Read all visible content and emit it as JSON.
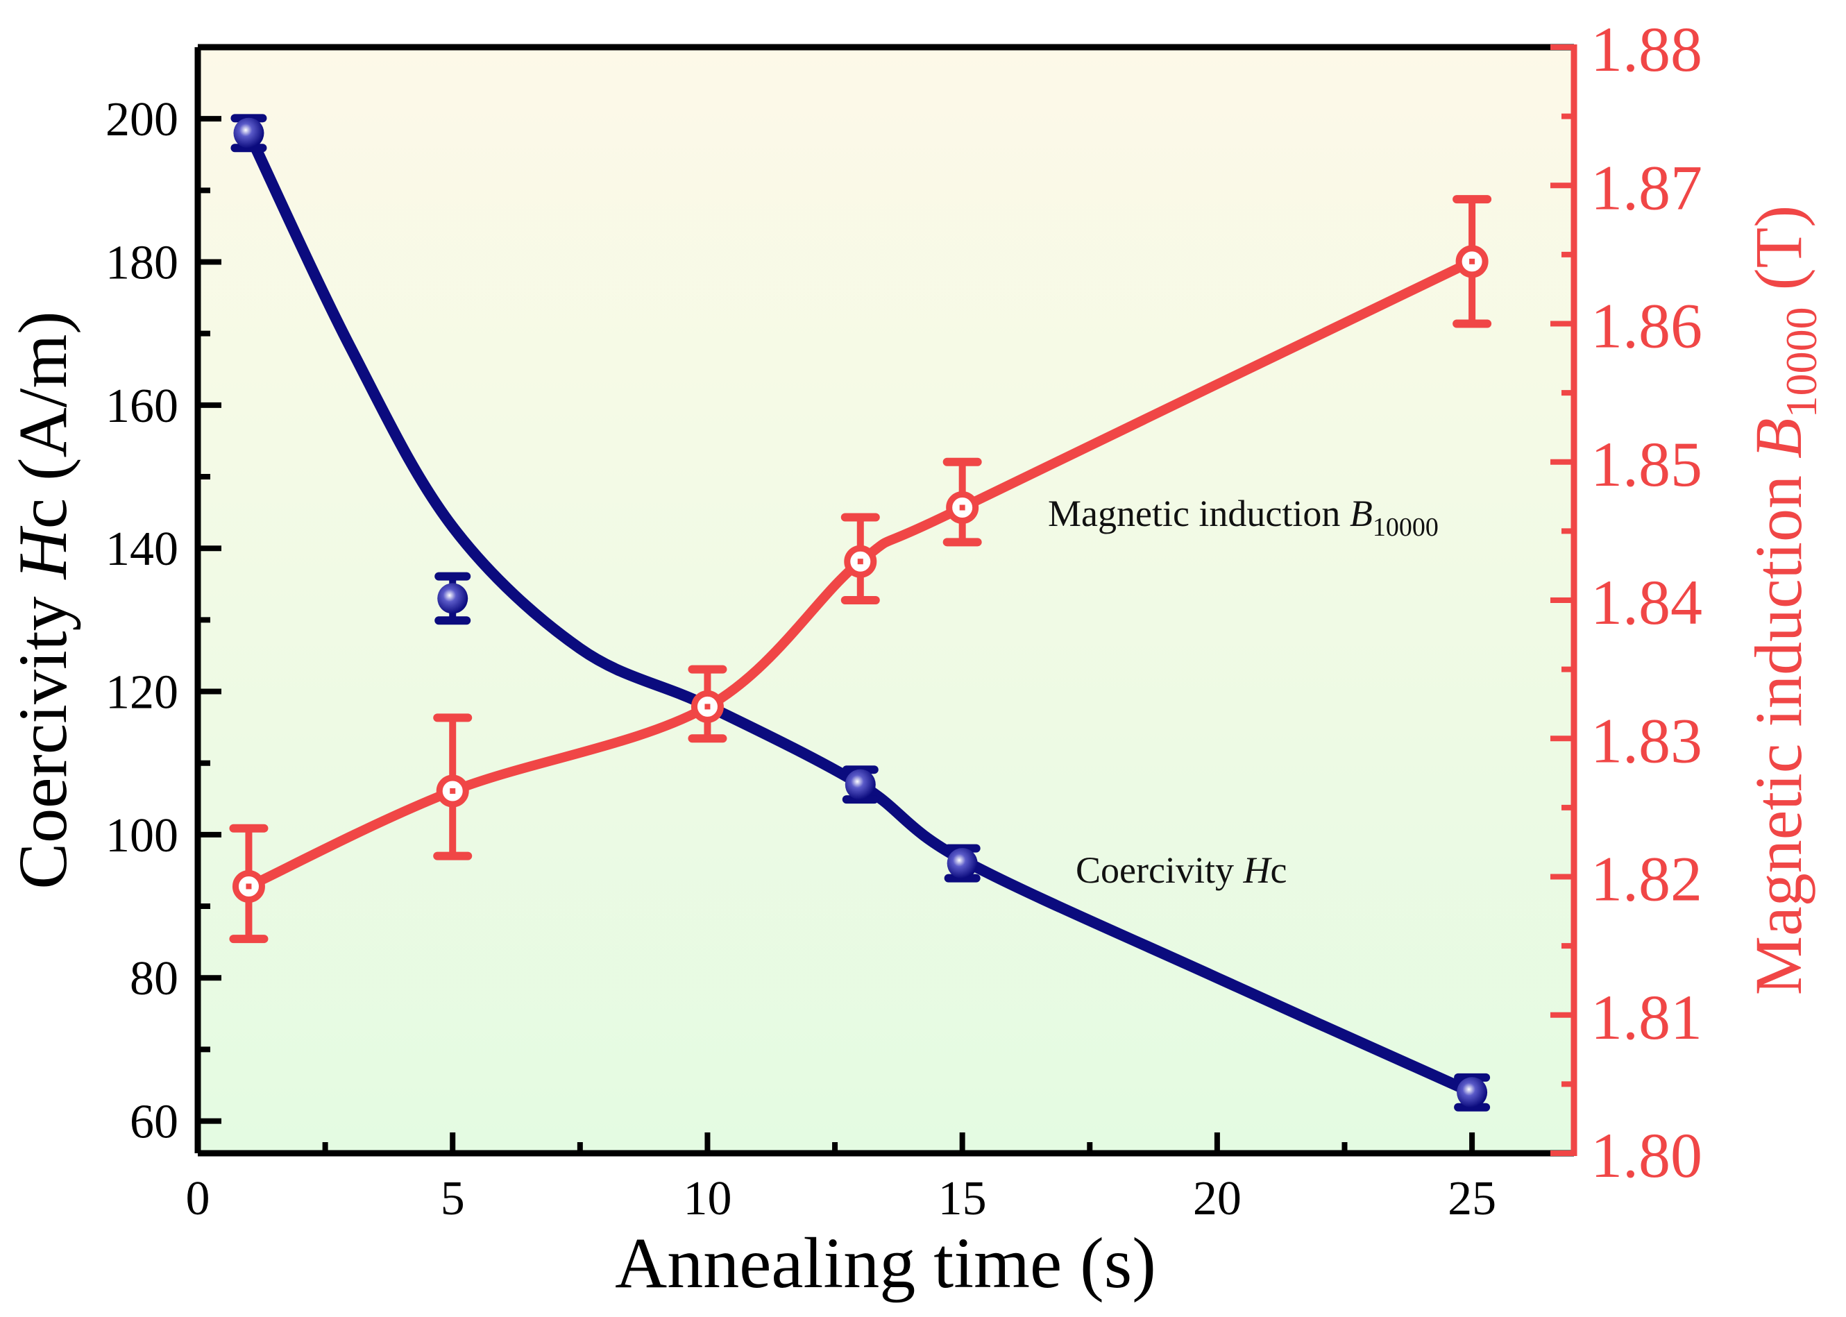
{
  "chart_data": {
    "type": "line",
    "xlabel": "Annealing time (s)",
    "ylabel_left": {
      "main": "Coercivity ",
      "italic": "H",
      "rest": "c (A/m)"
    },
    "ylabel_right": {
      "main": "Magnetic induction ",
      "italic": "B",
      "sub": "10000",
      "rest": " (T)"
    },
    "xlim": [
      0,
      27
    ],
    "ylim_left": [
      55.5,
      210
    ],
    "ylim_right": [
      1.8,
      1.88
    ],
    "x_ticks": [
      "0",
      "5",
      "10",
      "15",
      "20",
      "25"
    ],
    "y_left_ticks": [
      "60",
      "80",
      "100",
      "120",
      "140",
      "160",
      "180",
      "200"
    ],
    "y_right_ticks": [
      "1.80",
      "1.81",
      "1.82",
      "1.83",
      "1.84",
      "1.85",
      "1.86",
      "1.87",
      "1.88"
    ],
    "grid": false,
    "series": [
      {
        "name": "Coercivity Hc",
        "axis": "left",
        "color": "#0b0b7e",
        "x": [
          1,
          5,
          13,
          15,
          25
        ],
        "y": [
          198,
          133,
          107,
          96,
          64
        ],
        "yerr": [
          1.5,
          2.5,
          1.5,
          1.5,
          1.5
        ],
        "fit_x": [
          1,
          3,
          5,
          7.5,
          10,
          13,
          15,
          20,
          25
        ],
        "fit_y": [
          198,
          168,
          143,
          126,
          118,
          107,
          96.5,
          80,
          64
        ]
      },
      {
        "name": "Magnetic induction B10000",
        "axis": "right",
        "color": "#f04646",
        "x": [
          1,
          5,
          10,
          13,
          15,
          25
        ],
        "y": [
          1.8193,
          1.8262,
          1.8323,
          1.8428,
          1.8467,
          1.8645
        ],
        "err_low": [
          1.8155,
          1.8215,
          1.83,
          1.84,
          1.8442,
          1.86
        ],
        "err_high": [
          1.8235,
          1.8315,
          1.835,
          1.846,
          1.85,
          1.869
        ]
      }
    ],
    "annotations": [
      {
        "main": "Magnetic induction ",
        "italic": "B",
        "sub": "10000"
      },
      {
        "main": "Coercivity ",
        "italic": "H",
        "rest": "c"
      }
    ]
  }
}
